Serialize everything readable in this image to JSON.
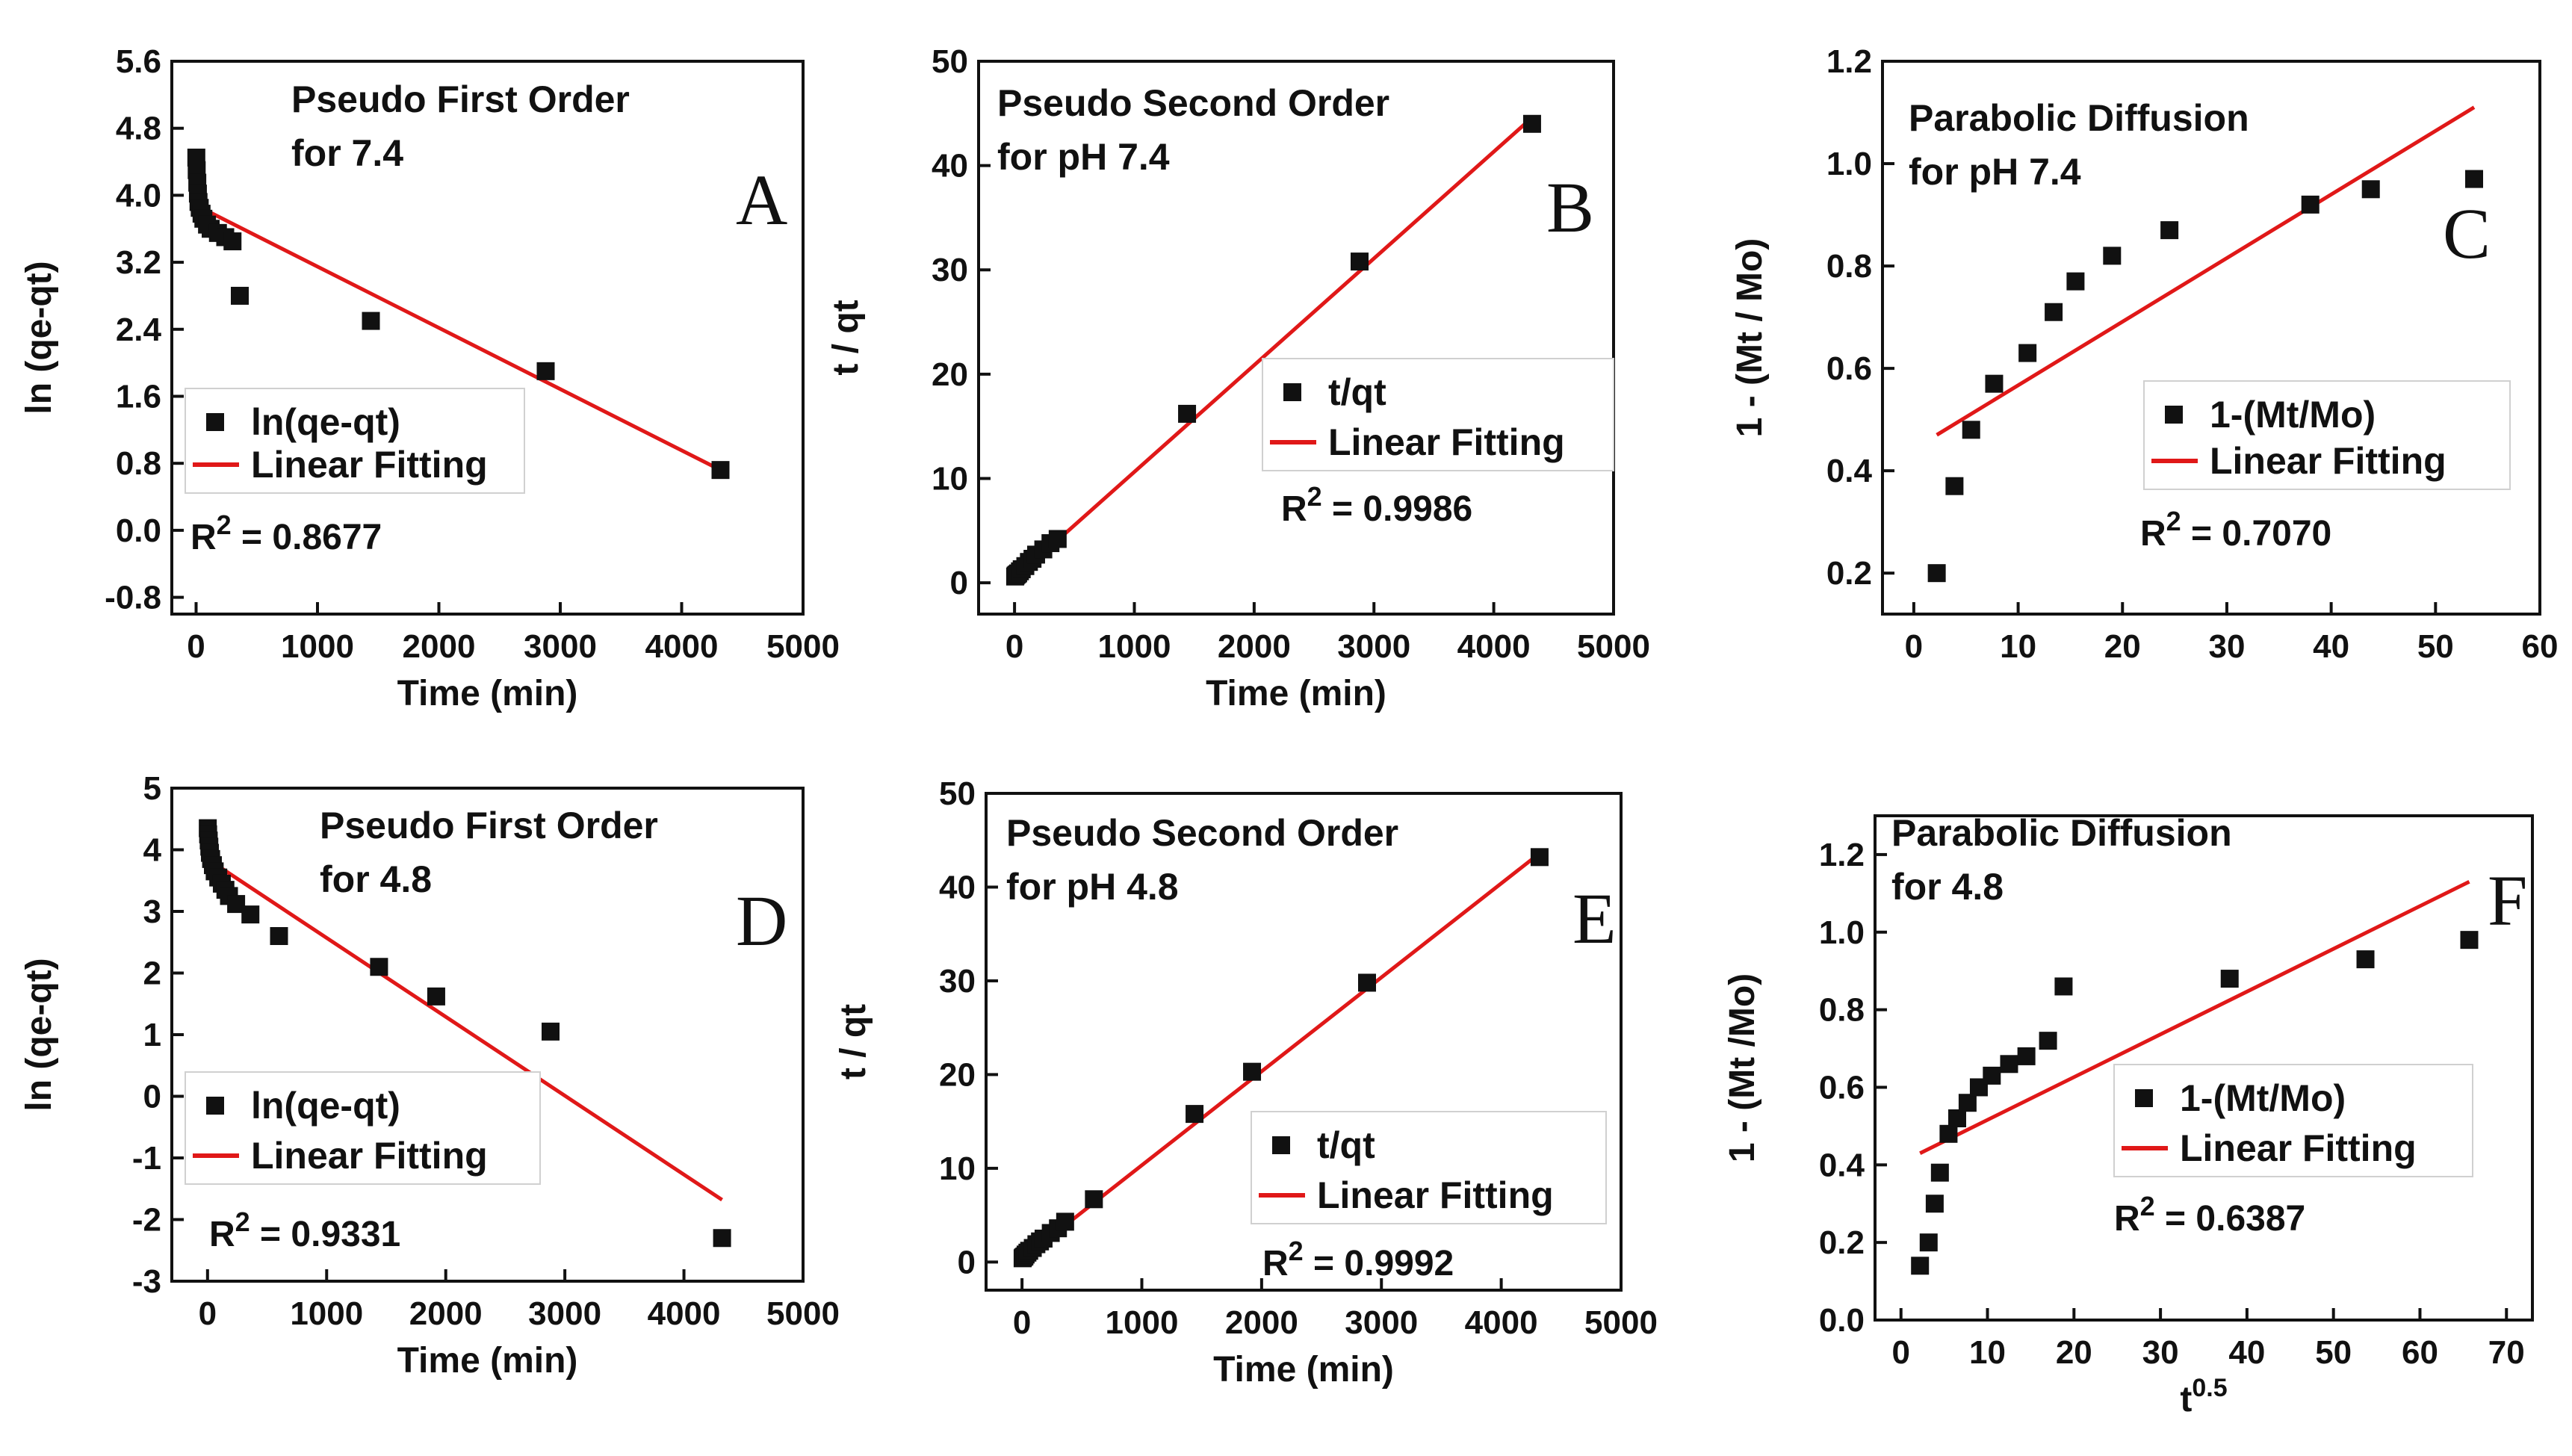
{
  "figure": {
    "colors": {
      "marker": "#111111",
      "fit_line": "#e01818",
      "axis": "#111111",
      "background": "#ffffff"
    }
  },
  "chart_data": [
    {
      "panel": "A",
      "type": "scatter",
      "title_lines": [
        "Pseudo First Order",
        "for 7.4"
      ],
      "xlabel": "Time (min)",
      "ylabel": "ln (qe-qt)",
      "xlim": [
        -200,
        5000
      ],
      "ylim": [
        -1.0,
        5.6
      ],
      "xticks": [
        0,
        1000,
        2000,
        3000,
        4000,
        5000
      ],
      "yticks": [
        -0.8,
        0.0,
        0.8,
        1.6,
        2.4,
        3.2,
        4.0,
        4.8,
        5.6
      ],
      "ytick_labels": [
        "-0.8",
        "0.0",
        "0.8",
        "1.6",
        "2.4",
        "3.2",
        "4.0",
        "4.8",
        "5.6"
      ],
      "legend_position": "bottom-left",
      "series": [
        {
          "name": "ln(qe-qt)",
          "kind": "points",
          "x": [
            2,
            5,
            10,
            15,
            20,
            30,
            45,
            60,
            90,
            120,
            180,
            240,
            300,
            360,
            1440,
            2880,
            4320
          ],
          "y": [
            4.45,
            4.3,
            4.15,
            4.02,
            3.92,
            3.85,
            3.78,
            3.72,
            3.65,
            3.6,
            3.55,
            3.5,
            3.45,
            2.8,
            2.5,
            1.9,
            0.72
          ]
        },
        {
          "name": "Linear Fitting",
          "kind": "line",
          "x": [
            0,
            4320
          ],
          "y": [
            3.88,
            0.72
          ]
        }
      ],
      "r2_prefix": "R",
      "r2_value": "= 0.8677"
    },
    {
      "panel": "B",
      "type": "scatter",
      "title_lines": [
        "Pseudo Second Order",
        "for pH 7.4"
      ],
      "xlabel": "Time (min)",
      "ylabel": "t / qt",
      "xlim": [
        -300,
        5000
      ],
      "ylim": [
        -3,
        50
      ],
      "xticks": [
        0,
        1000,
        2000,
        3000,
        4000,
        5000
      ],
      "yticks": [
        0,
        10,
        20,
        30,
        40,
        50
      ],
      "ytick_labels": [
        "0",
        "10",
        "20",
        "30",
        "40",
        "50"
      ],
      "legend_position": "center-right",
      "series": [
        {
          "name": "t/qt",
          "kind": "points",
          "x": [
            5,
            10,
            20,
            30,
            45,
            60,
            90,
            120,
            150,
            180,
            240,
            300,
            360,
            1440,
            2880,
            4320
          ],
          "y": [
            0.6,
            0.7,
            0.8,
            0.9,
            1.1,
            1.3,
            1.6,
            2.0,
            2.3,
            2.7,
            3.2,
            3.8,
            4.2,
            16.2,
            30.8,
            44.0
          ]
        },
        {
          "name": "Linear Fitting",
          "kind": "line",
          "x": [
            0,
            4320
          ],
          "y": [
            0.4,
            44.6
          ]
        }
      ],
      "r2_prefix": "R",
      "r2_value": "= 0.9986"
    },
    {
      "panel": "C",
      "type": "scatter",
      "title_lines": [
        "Parabolic Diffusion",
        "for pH 7.4"
      ],
      "xlabel": "",
      "ylabel": "1 - (Mt / Mo)",
      "xlim": [
        -3,
        60
      ],
      "ylim": [
        0.12,
        1.2
      ],
      "xticks": [
        0,
        10,
        20,
        30,
        40,
        50,
        60
      ],
      "yticks": [
        0.2,
        0.4,
        0.6,
        0.8,
        1.0,
        1.2
      ],
      "ytick_labels": [
        "0.2",
        "0.4",
        "0.6",
        "0.8",
        "1.0",
        "1.2"
      ],
      "legend_position": "center-right",
      "series": [
        {
          "name": "1-(Mt/Mo)",
          "kind": "points",
          "x": [
            2.2,
            3.9,
            5.5,
            7.7,
            10.9,
            13.4,
            15.5,
            19.0,
            24.5,
            38.0,
            43.8,
            53.7
          ],
          "y": [
            0.2,
            0.37,
            0.48,
            0.57,
            0.63,
            0.71,
            0.77,
            0.82,
            0.87,
            0.92,
            0.95,
            0.97
          ]
        },
        {
          "name": "Linear Fitting",
          "kind": "line",
          "x": [
            2.2,
            53.7
          ],
          "y": [
            0.47,
            1.11
          ]
        }
      ],
      "r2_prefix": "R",
      "r2_value": "= 0.7070"
    },
    {
      "panel": "D",
      "type": "scatter",
      "title_lines": [
        "Pseudo First Order",
        "for  4.8"
      ],
      "xlabel": "Time (min)",
      "ylabel": "ln (qe-qt)",
      "xlim": [
        -300,
        5000
      ],
      "ylim": [
        -3,
        5
      ],
      "xticks": [
        0,
        1000,
        2000,
        3000,
        4000,
        5000
      ],
      "yticks": [
        -3,
        -2,
        -1,
        0,
        1,
        2,
        3,
        4,
        5
      ],
      "ytick_labels": [
        "-3",
        "-2",
        "-1",
        "0",
        "1",
        "2",
        "3",
        "4",
        "5"
      ],
      "legend_position": "bottom-left",
      "series": [
        {
          "name": "ln(qe-qt)",
          "kind": "points",
          "x": [
            2,
            5,
            10,
            15,
            20,
            30,
            45,
            60,
            90,
            120,
            150,
            180,
            240,
            360,
            600,
            1440,
            1920,
            2880,
            4320
          ],
          "y": [
            4.35,
            4.25,
            4.15,
            4.05,
            3.95,
            3.85,
            3.75,
            3.65,
            3.55,
            3.45,
            3.35,
            3.25,
            3.12,
            2.95,
            2.6,
            2.1,
            1.62,
            1.05,
            -2.3
          ]
        },
        {
          "name": "Linear Fitting",
          "kind": "line",
          "x": [
            0,
            4320
          ],
          "y": [
            3.85,
            -1.68
          ]
        }
      ],
      "r2_prefix": "R",
      "r2_value": "= 0.9331"
    },
    {
      "panel": "E",
      "type": "scatter",
      "title_lines": [
        "Pseudo Second Order",
        "for pH  4.8"
      ],
      "xlabel": "Time (min)",
      "ylabel": "t / qt",
      "xlim": [
        -300,
        5000
      ],
      "ylim": [
        -3,
        50
      ],
      "xticks": [
        0,
        1000,
        2000,
        3000,
        4000,
        5000
      ],
      "xtick_labels": [
        "0",
        "1000",
        "2000",
        "3000",
        "4000",
        "5000"
      ],
      "yticks": [
        0,
        10,
        20,
        30,
        40,
        50
      ],
      "ytick_labels": [
        "0",
        "10",
        "20",
        "30",
        "40",
        "50"
      ],
      "legend_position": "bottom-right",
      "series": [
        {
          "name": "t/qt",
          "kind": "points",
          "x": [
            5,
            10,
            20,
            30,
            45,
            60,
            90,
            120,
            150,
            180,
            240,
            300,
            360,
            600,
            1440,
            1920,
            2880,
            4320
          ],
          "y": [
            0.4,
            0.5,
            0.6,
            0.8,
            1.0,
            1.2,
            1.5,
            1.9,
            2.2,
            2.5,
            3.1,
            3.6,
            4.3,
            6.7,
            15.8,
            20.3,
            29.8,
            43.2
          ]
        },
        {
          "name": "Linear Fitting",
          "kind": "line",
          "x": [
            0,
            4320
          ],
          "y": [
            0.3,
            43.6
          ]
        }
      ],
      "r2_prefix": "R",
      "r2_value": "= 0.9992"
    },
    {
      "panel": "F",
      "type": "scatter",
      "title_lines": [
        "Parabolic Diffusion",
        "for 4.8"
      ],
      "xlabel_base": "t",
      "xlabel_sup": "0.5",
      "ylabel": "1 - (Mt /Mo)",
      "xlim": [
        -3,
        73
      ],
      "ylim": [
        0.0,
        1.3
      ],
      "xticks": [
        0,
        10,
        20,
        30,
        40,
        50,
        60,
        70
      ],
      "yticks": [
        0.0,
        0.2,
        0.4,
        0.6,
        0.8,
        1.0,
        1.2
      ],
      "ytick_labels": [
        "0.0",
        "0.2",
        "0.4",
        "0.6",
        "0.8",
        "1.0",
        "1.2"
      ],
      "legend_position": "center-right",
      "series": [
        {
          "name": "1-(Mt/Mo)",
          "kind": "points",
          "x": [
            2.2,
            3.2,
            3.9,
            4.5,
            5.5,
            6.5,
            7.7,
            9.0,
            10.5,
            12.5,
            14.5,
            17.0,
            18.8,
            38.0,
            53.7,
            65.7
          ],
          "y": [
            0.14,
            0.2,
            0.3,
            0.38,
            0.48,
            0.52,
            0.56,
            0.6,
            0.63,
            0.66,
            0.68,
            0.72,
            0.86,
            0.88,
            0.93,
            0.98
          ]
        },
        {
          "name": "Linear Fitting",
          "kind": "line",
          "x": [
            2.2,
            65.7
          ],
          "y": [
            0.43,
            1.13
          ]
        }
      ],
      "r2_prefix": "R",
      "r2_value": "= 0.6387"
    }
  ]
}
